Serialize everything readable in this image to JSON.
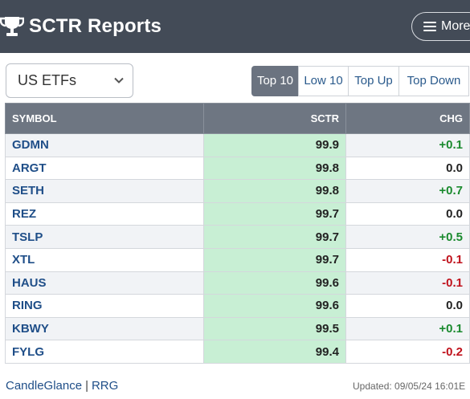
{
  "header": {
    "title": "SCTR Reports",
    "more_label": "More"
  },
  "filter": {
    "selected": "US ETFs"
  },
  "tabs": [
    {
      "label": "Top 10",
      "active": true
    },
    {
      "label": "Low 10",
      "active": false
    },
    {
      "label": "Top Up",
      "active": false
    },
    {
      "label": "Top Down",
      "active": false
    }
  ],
  "table": {
    "columns": [
      "SYMBOL",
      "SCTR",
      "CHG"
    ],
    "rows": [
      {
        "symbol": "GDMN",
        "sctr": "99.9",
        "chg": "+0.1",
        "dir": "pos"
      },
      {
        "symbol": "ARGT",
        "sctr": "99.8",
        "chg": "0.0",
        "dir": "zero"
      },
      {
        "symbol": "SETH",
        "sctr": "99.8",
        "chg": "+0.7",
        "dir": "pos"
      },
      {
        "symbol": "REZ",
        "sctr": "99.7",
        "chg": "0.0",
        "dir": "zero"
      },
      {
        "symbol": "TSLP",
        "sctr": "99.7",
        "chg": "+0.5",
        "dir": "pos"
      },
      {
        "symbol": "XTL",
        "sctr": "99.7",
        "chg": "-0.1",
        "dir": "neg"
      },
      {
        "symbol": "HAUS",
        "sctr": "99.6",
        "chg": "-0.1",
        "dir": "neg"
      },
      {
        "symbol": "RING",
        "sctr": "99.6",
        "chg": "0.0",
        "dir": "zero"
      },
      {
        "symbol": "KBWY",
        "sctr": "99.5",
        "chg": "+0.1",
        "dir": "pos"
      },
      {
        "symbol": "FYLG",
        "sctr": "99.4",
        "chg": "-0.2",
        "dir": "neg"
      }
    ]
  },
  "footer": {
    "link1": "CandleGlance",
    "separator": "|",
    "link2": "RRG",
    "updated": "Updated: 09/05/24 16:01E"
  },
  "colors": {
    "header_bg": "#434b57",
    "table_header_bg": "#6e7682",
    "sctr_cell_bg": "#c8efd4",
    "positive": "#1a8a2e",
    "negative": "#c0121c",
    "link": "#1f4e88"
  },
  "icons": {
    "logo": "trophy-icon",
    "menu": "hamburger-icon",
    "dropdown": "chevron-down-icon"
  }
}
